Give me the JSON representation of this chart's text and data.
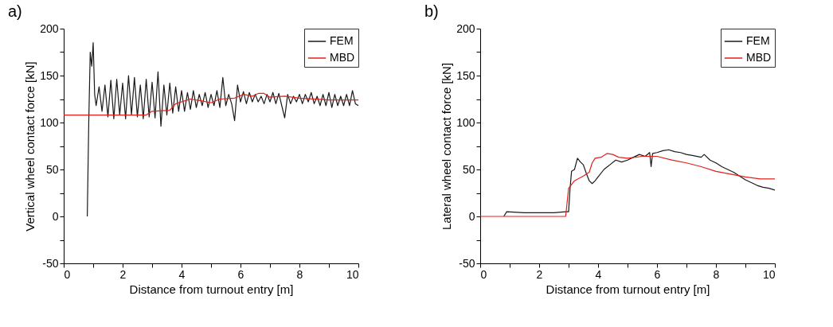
{
  "chart_data": [
    {
      "type": "line",
      "annotations": [
        "a)"
      ],
      "xlabel": "Distance from turnout entry [m]",
      "ylabel": "Vertical wheel contact force [kN]",
      "xlim": [
        0,
        10
      ],
      "ylim": [
        -50,
        200
      ],
      "xticks": [
        0,
        {
          "value": 1,
          "label": null
        },
        2,
        {
          "value": 3,
          "label": null
        },
        4,
        {
          "value": 5,
          "label": null
        },
        6,
        {
          "value": 7,
          "label": null
        },
        8,
        {
          "value": 9,
          "label": null
        },
        10
      ],
      "yticks": [
        -50,
        {
          "value": -25,
          "label": null
        },
        0,
        {
          "value": 25,
          "label": null
        },
        50,
        {
          "value": 75,
          "label": null
        },
        100,
        {
          "value": 125,
          "label": null
        },
        150,
        {
          "value": 175,
          "label": null
        },
        200
      ],
      "legend": "top right",
      "series": [
        {
          "name": "FEM",
          "color": "#1a1a1a",
          "x": [
            0.8,
            0.85,
            0.9,
            0.95,
            1.0,
            1.05,
            1.1,
            1.2,
            1.3,
            1.4,
            1.5,
            1.6,
            1.7,
            1.8,
            1.9,
            2.0,
            2.1,
            2.2,
            2.3,
            2.4,
            2.5,
            2.6,
            2.7,
            2.8,
            2.9,
            3.0,
            3.1,
            3.2,
            3.3,
            3.4,
            3.5,
            3.6,
            3.7,
            3.8,
            3.9,
            4.0,
            4.1,
            4.2,
            4.3,
            4.4,
            4.5,
            4.6,
            4.7,
            4.8,
            4.9,
            5.0,
            5.1,
            5.2,
            5.3,
            5.4,
            5.5,
            5.6,
            5.7,
            5.8,
            5.9,
            6.0,
            6.1,
            6.2,
            6.3,
            6.4,
            6.5,
            6.6,
            6.7,
            6.8,
            6.9,
            7.0,
            7.1,
            7.2,
            7.3,
            7.4,
            7.5,
            7.6,
            7.7,
            7.8,
            7.9,
            8.0,
            8.1,
            8.2,
            8.3,
            8.4,
            8.5,
            8.6,
            8.7,
            8.8,
            8.9,
            9.0,
            9.1,
            9.2,
            9.3,
            9.4,
            9.5,
            9.6,
            9.7,
            9.8,
            9.9,
            10.0
          ],
          "values": [
            0,
            100,
            175,
            160,
            185,
            130,
            118,
            138,
            112,
            140,
            106,
            145,
            104,
            146,
            108,
            142,
            104,
            150,
            108,
            148,
            106,
            140,
            104,
            146,
            106,
            143,
            105,
            154,
            96,
            140,
            108,
            142,
            110,
            138,
            112,
            134,
            112,
            132,
            114,
            134,
            116,
            130,
            118,
            132,
            116,
            130,
            118,
            134,
            116,
            148,
            118,
            130,
            120,
            102,
            140,
            122,
            133,
            120,
            132,
            122,
            130,
            122,
            128,
            120,
            130,
            122,
            132,
            120,
            131,
            118,
            105,
            130,
            120,
            128,
            122,
            130,
            120,
            130,
            122,
            132,
            120,
            128,
            118,
            130,
            118,
            132,
            116,
            130,
            118,
            128,
            118,
            130,
            118,
            134,
            120,
            118
          ]
        },
        {
          "name": "MBD",
          "color": "#e3201b",
          "x": [
            0,
            2.8,
            3.0,
            3.6,
            3.8,
            4.3,
            4.7,
            5.0,
            5.3,
            5.8,
            6.1,
            6.4,
            6.6,
            6.8,
            7.0,
            7.5,
            8.0,
            9.0,
            10.0
          ],
          "values": [
            108,
            108,
            112,
            113,
            120,
            125,
            123,
            121,
            125,
            126,
            130,
            128,
            131,
            131,
            127,
            128,
            126,
            124,
            124
          ]
        }
      ]
    },
    {
      "type": "line",
      "annotations": [
        "b)"
      ],
      "xlabel": "Distance from turnout entry [m]",
      "ylabel": "Lateral wheel contact force [kN]",
      "xlim": [
        0,
        10
      ],
      "ylim": [
        -50,
        200
      ],
      "xticks": [
        0,
        {
          "value": 1,
          "label": null
        },
        2,
        {
          "value": 3,
          "label": null
        },
        4,
        {
          "value": 5,
          "label": null
        },
        6,
        {
          "value": 7,
          "label": null
        },
        8,
        {
          "value": 9,
          "label": null
        },
        10
      ],
      "yticks": [
        -50,
        {
          "value": -25,
          "label": null
        },
        0,
        {
          "value": 25,
          "label": null
        },
        50,
        {
          "value": 75,
          "label": null
        },
        100,
        {
          "value": 125,
          "label": null
        },
        150,
        {
          "value": 175,
          "label": null
        },
        200
      ],
      "legend": "top right",
      "series": [
        {
          "name": "FEM",
          "color": "#1a1a1a",
          "x": [
            0.8,
            0.9,
            1.5,
            2.5,
            2.9,
            3.0,
            3.05,
            3.1,
            3.2,
            3.3,
            3.4,
            3.5,
            3.6,
            3.7,
            3.8,
            3.9,
            4.0,
            4.2,
            4.4,
            4.6,
            4.8,
            5.0,
            5.2,
            5.4,
            5.6,
            5.75,
            5.8,
            5.85,
            6.0,
            6.2,
            6.4,
            6.6,
            6.8,
            7.0,
            7.2,
            7.5,
            7.6,
            7.8,
            8.0,
            8.2,
            8.4,
            8.6,
            8.8,
            9.0,
            9.2,
            9.4,
            9.6,
            9.8,
            10.0
          ],
          "values": [
            0,
            5,
            4,
            4,
            5,
            5,
            30,
            48,
            50,
            62,
            58,
            55,
            46,
            38,
            35,
            38,
            42,
            50,
            55,
            60,
            58,
            60,
            63,
            66,
            64,
            68,
            53,
            67,
            68,
            70,
            71,
            69,
            68,
            66,
            65,
            63,
            66,
            60,
            57,
            53,
            50,
            47,
            43,
            39,
            36,
            33,
            31,
            30,
            28
          ]
        },
        {
          "name": "MBD",
          "color": "#e3201b",
          "x": [
            0,
            2.9,
            2.95,
            3.0,
            3.2,
            3.5,
            3.7,
            3.8,
            3.9,
            4.1,
            4.3,
            4.5,
            4.7,
            5.0,
            5.5,
            6.0,
            6.5,
            7.0,
            7.5,
            8.0,
            8.5,
            9.0,
            9.5,
            10.0
          ],
          "values": [
            0,
            0,
            15,
            30,
            38,
            43,
            47,
            57,
            62,
            63,
            67,
            66,
            63,
            62,
            64,
            64,
            60,
            57,
            53,
            48,
            45,
            42,
            40,
            40
          ]
        }
      ]
    }
  ]
}
